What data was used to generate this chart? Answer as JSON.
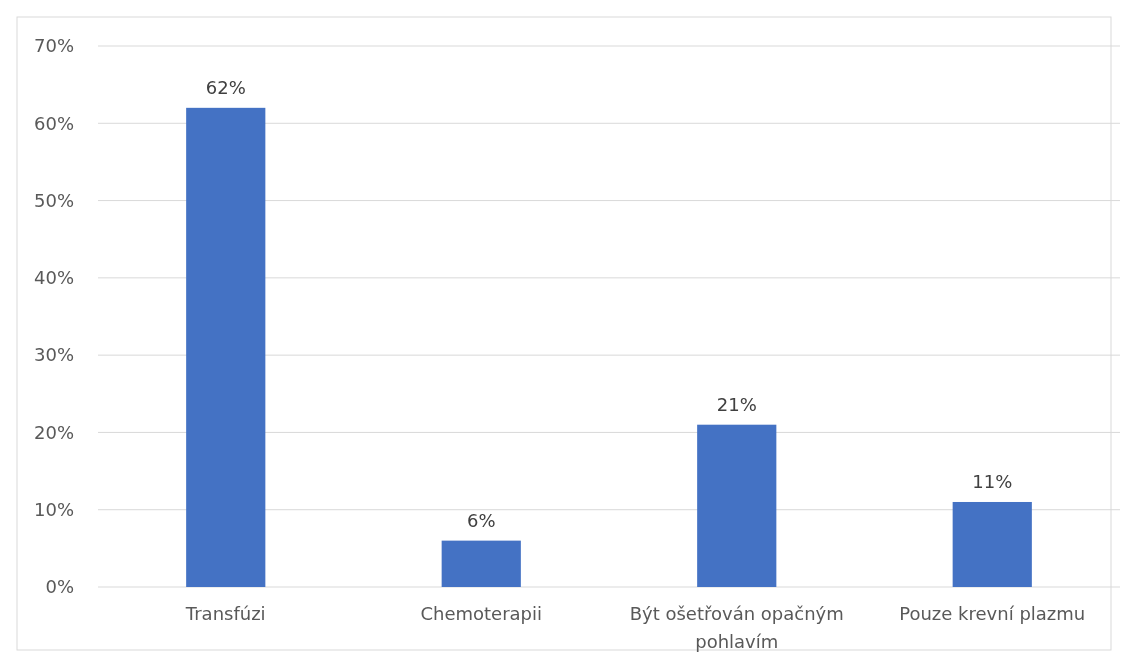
{
  "chart_data": {
    "type": "bar",
    "categories": [
      "Transfúzi",
      "Chemoterapii",
      "Být ošetřován opačným pohlavím",
      "Pouze krevní plazmu"
    ],
    "values": [
      62,
      6,
      21,
      11
    ],
    "color": "#4472c4",
    "ylim": [
      0,
      70
    ],
    "yticks": [
      {
        "value": 0,
        "label": "0%"
      },
      {
        "value": 10,
        "label": "10%"
      },
      {
        "value": 20,
        "label": "20%"
      },
      {
        "value": 30,
        "label": "30%"
      },
      {
        "value": 40,
        "label": "40%"
      },
      {
        "value": 50,
        "label": "50%"
      },
      {
        "value": 60,
        "label": "60%"
      },
      {
        "value": 70,
        "label": "70%"
      }
    ],
    "value_labels": [
      "62%",
      "6%",
      "21%",
      "11%"
    ],
    "grid": "y"
  }
}
